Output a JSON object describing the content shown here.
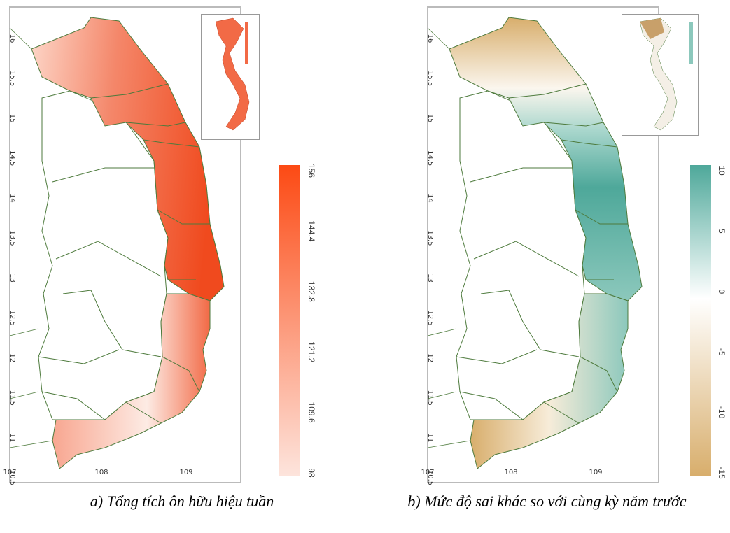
{
  "panels": [
    {
      "id": "a",
      "caption": "a) Tổng tích ôn hữu hiệu tuần",
      "colorbar": {
        "ticks": [
          "156",
          "144.4",
          "132.8",
          "121.2",
          "109.6",
          "98"
        ],
        "min_color": "#fde4dc",
        "max_color": "#fc4a14"
      },
      "map_fill": "#f26a46"
    },
    {
      "id": "b",
      "caption": "b) Mức độ sai khác so với cùng kỳ năm trước",
      "colorbar": {
        "ticks": [
          "10",
          "5",
          "0",
          "-5",
          "-10",
          "-15"
        ],
        "min_color": "#d8ae6c",
        "mid_color": "#ffffff",
        "max_color": "#4ea89a"
      }
    }
  ],
  "axes": {
    "lat_ticks": [
      "16",
      "15.5",
      "15",
      "14.5",
      "14",
      "13.5",
      "13",
      "12.5",
      "12",
      "11.5",
      "11",
      "10.5"
    ],
    "lon_ticks": [
      "107",
      "108",
      "109"
    ]
  },
  "colors": {
    "border": "#4d7a3c",
    "frame": "#bbbbbb"
  }
}
